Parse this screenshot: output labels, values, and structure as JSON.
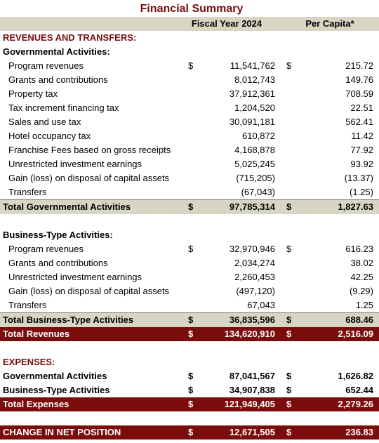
{
  "title": "Financial Summary",
  "columns": {
    "fiscal_year": "Fiscal Year 2024",
    "per_capita": "Per Capita*"
  },
  "revenues_section": "REVENUES AND TRANSFERS:",
  "governmental": {
    "heading": "Governmental Activities:",
    "rows": [
      {
        "label": "Program revenues",
        "d1": "$",
        "amount": "11,541,762",
        "d2": "$",
        "per_capita": "215.72"
      },
      {
        "label": "Grants and contributions",
        "d1": "",
        "amount": "8,012,743",
        "d2": "",
        "per_capita": "149.76"
      },
      {
        "label": "Property tax",
        "d1": "",
        "amount": "37,912,361",
        "d2": "",
        "per_capita": "708.59"
      },
      {
        "label": "Tax increment financing tax",
        "d1": "",
        "amount": "1,204,520",
        "d2": "",
        "per_capita": "22.51"
      },
      {
        "label": "Sales and use tax",
        "d1": "",
        "amount": "30,091,181",
        "d2": "",
        "per_capita": "562.41"
      },
      {
        "label": "Hotel occupancy tax",
        "d1": "",
        "amount": "610,872",
        "d2": "",
        "per_capita": "11.42"
      },
      {
        "label": "Franchise Fees based on gross receipts",
        "d1": "",
        "amount": "4,168,878",
        "d2": "",
        "per_capita": "77.92"
      },
      {
        "label": "Unrestricted investment earnings",
        "d1": "",
        "amount": "5,025,245",
        "d2": "",
        "per_capita": "93.92"
      },
      {
        "label": "Gain (loss) on disposal of capital assets",
        "d1": "",
        "amount": "(715,205)",
        "d2": "",
        "per_capita": "(13.37)"
      },
      {
        "label": "Transfers",
        "d1": "",
        "amount": "(67,043)",
        "d2": "",
        "per_capita": "(1.25)"
      }
    ],
    "total": {
      "label": "Total Governmental Activities",
      "d1": "$",
      "amount": "97,785,314",
      "d2": "$",
      "per_capita": "1,827.63"
    }
  },
  "business": {
    "heading": "Business-Type Activities:",
    "rows": [
      {
        "label": "Program revenues",
        "d1": "$",
        "amount": "32,970,946",
        "d2": "$",
        "per_capita": "616.23"
      },
      {
        "label": "Grants and contributions",
        "d1": "",
        "amount": "2,034,274",
        "d2": "",
        "per_capita": "38.02"
      },
      {
        "label": "Unrestricted investment earnings",
        "d1": "",
        "amount": "2,260,453",
        "d2": "",
        "per_capita": "42.25"
      },
      {
        "label": "Gain (loss) on disposal of capital assets",
        "d1": "",
        "amount": "(497,120)",
        "d2": "",
        "per_capita": "(9.29)"
      },
      {
        "label": "Transfers",
        "d1": "",
        "amount": "67,043",
        "d2": "",
        "per_capita": "1.25"
      }
    ],
    "total": {
      "label": "Total Business-Type Activities",
      "d1": "$",
      "amount": "36,835,596",
      "d2": "$",
      "per_capita": "688.46"
    }
  },
  "total_revenues": {
    "label": "Total Revenues",
    "d1": "$",
    "amount": "134,620,910",
    "d2": "$",
    "per_capita": "2,516.09"
  },
  "expenses_section": "EXPENSES:",
  "expenses": {
    "rows": [
      {
        "label": "Governmental Activities",
        "d1": "$",
        "amount": "87,041,567",
        "d2": "$",
        "per_capita": "1,626.82"
      },
      {
        "label": "Business-Type Activities",
        "d1": "$",
        "amount": "34,907,838",
        "d2": "$",
        "per_capita": "652.44"
      }
    ],
    "total": {
      "label": "Total Expenses",
      "d1": "$",
      "amount": "121,949,405",
      "d2": "$",
      "per_capita": "2,279.26"
    }
  },
  "net_position": {
    "label": "CHANGE IN NET POSITION",
    "d1": "$",
    "amount": "12,671,505",
    "d2": "$",
    "per_capita": "236.83"
  },
  "colors": {
    "header_band": "#d7d6c4",
    "accent_red": "#7b0c0c"
  }
}
